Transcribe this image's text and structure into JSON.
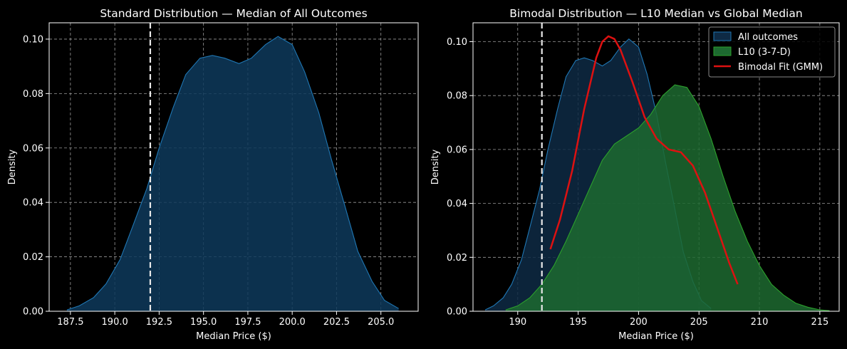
{
  "chart_data": [
    {
      "type": "area",
      "title": "Standard Distribution — Median of All Outcomes",
      "xlabel": "Median Price ($)",
      "ylabel": "Density",
      "xlim": [
        186.3,
        207.1
      ],
      "ylim": [
        0,
        0.106
      ],
      "xticks": [
        187.5,
        190.0,
        192.5,
        195.0,
        197.5,
        200.0,
        202.5,
        205.0
      ],
      "xtick_labels": [
        "187.5",
        "190.0",
        "192.5",
        "195.0",
        "197.5",
        "200.0",
        "202.5",
        "205.0"
      ],
      "yticks": [
        0,
        0.02,
        0.04,
        0.06,
        0.08,
        0.1
      ],
      "ytick_labels": [
        "0.00",
        "0.02",
        "0.04",
        "0.06",
        "0.08",
        "0.10"
      ],
      "grid": true,
      "vline": {
        "x": 192.0,
        "style": "dashed",
        "color": "#e8e8e8"
      },
      "series": [
        {
          "color": "#1f77b4",
          "fill": "#0e3a5c",
          "x": [
            187.3,
            188.0,
            188.8,
            189.5,
            190.3,
            191.0,
            191.8,
            192.5,
            193.3,
            194.0,
            194.8,
            195.5,
            196.2,
            197.0,
            197.7,
            198.5,
            199.2,
            200.0,
            200.7,
            201.5,
            202.2,
            203.0,
            203.7,
            204.5,
            205.2,
            206.0
          ],
          "y": [
            0.0005,
            0.002,
            0.005,
            0.01,
            0.019,
            0.031,
            0.045,
            0.06,
            0.075,
            0.087,
            0.093,
            0.094,
            0.093,
            0.091,
            0.093,
            0.098,
            0.101,
            0.098,
            0.088,
            0.073,
            0.056,
            0.038,
            0.022,
            0.011,
            0.004,
            0.001
          ]
        }
      ]
    },
    {
      "type": "area",
      "title": "Bimodal Distribution — L10 Median vs Global Median",
      "xlabel": "Median Price ($)",
      "ylabel": "Density",
      "xlim": [
        186.3,
        216.6
      ],
      "ylim": [
        0,
        0.107
      ],
      "xticks": [
        190,
        195,
        200,
        205,
        210,
        215
      ],
      "xtick_labels": [
        "190",
        "195",
        "200",
        "205",
        "210",
        "215"
      ],
      "yticks": [
        0,
        0.02,
        0.04,
        0.06,
        0.08,
        0.1
      ],
      "ytick_labels": [
        "0.00",
        "0.02",
        "0.04",
        "0.06",
        "0.08",
        "0.10"
      ],
      "grid": true,
      "legend": "top-right",
      "vline": {
        "x": 192.0,
        "style": "dashed",
        "color": "#e8e8e8"
      },
      "series": [
        {
          "name": "All outcomes",
          "kind": "area",
          "color": "#1f77b4",
          "fill": "#0e2a44",
          "x": [
            187.3,
            188.0,
            188.8,
            189.5,
            190.3,
            191.0,
            191.8,
            192.5,
            193.3,
            194.0,
            194.8,
            195.5,
            196.2,
            197.0,
            197.7,
            198.5,
            199.2,
            200.0,
            200.7,
            201.5,
            202.2,
            203.0,
            203.7,
            204.5,
            205.2,
            206.0
          ],
          "y": [
            0.0005,
            0.002,
            0.005,
            0.01,
            0.019,
            0.031,
            0.045,
            0.06,
            0.075,
            0.087,
            0.093,
            0.094,
            0.093,
            0.091,
            0.093,
            0.098,
            0.101,
            0.098,
            0.088,
            0.073,
            0.056,
            0.038,
            0.022,
            0.011,
            0.004,
            0.001
          ]
        },
        {
          "name": "L10 (3-7-D)",
          "kind": "area",
          "color": "#2ca02c",
          "fill": "#1d6a30",
          "x": [
            189.0,
            190.0,
            191.0,
            192.0,
            193.0,
            194.0,
            195.0,
            196.0,
            197.0,
            198.0,
            199.0,
            200.0,
            201.0,
            202.0,
            203.0,
            204.0,
            205.0,
            206.0,
            207.0,
            208.0,
            209.0,
            210.0,
            211.0,
            212.0,
            213.0,
            214.0,
            215.0,
            215.8
          ],
          "y": [
            0.0005,
            0.002,
            0.005,
            0.01,
            0.017,
            0.026,
            0.036,
            0.046,
            0.056,
            0.062,
            0.065,
            0.068,
            0.073,
            0.08,
            0.084,
            0.083,
            0.076,
            0.064,
            0.05,
            0.037,
            0.026,
            0.017,
            0.01,
            0.006,
            0.003,
            0.0015,
            0.0005,
            0.0002
          ]
        },
        {
          "name": "Bimodal Fit (GMM)",
          "kind": "line",
          "color": "#dd1111",
          "x": [
            192.7,
            193.5,
            194.5,
            195.5,
            196.5,
            197.0,
            197.5,
            198.0,
            198.5,
            199.5,
            200.5,
            201.5,
            202.5,
            203.5,
            204.5,
            205.5,
            206.5,
            207.5,
            208.2
          ],
          "y": [
            0.023,
            0.034,
            0.052,
            0.075,
            0.094,
            0.1,
            0.102,
            0.101,
            0.097,
            0.085,
            0.072,
            0.064,
            0.06,
            0.059,
            0.054,
            0.044,
            0.031,
            0.018,
            0.01
          ]
        }
      ]
    }
  ]
}
